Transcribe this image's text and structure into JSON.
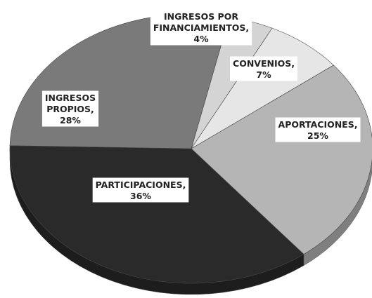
{
  "chart_data": {
    "type": "pie",
    "values": [
      4,
      7,
      25,
      36,
      28
    ],
    "value_labels": [
      "INGRESOS POR FINANCIAMIENTOS, 4%",
      "CONVENIOS, 7%",
      "APORTACIONES, 25%",
      "PARTICIPACIONES, 36%",
      "INGRESOS PROPIOS, 28%"
    ],
    "colors": [
      "#d4d4d4",
      "#e6e6e6",
      "#b5b5b5",
      "#2a2a2a",
      "#7a7a7a"
    ]
  }
}
